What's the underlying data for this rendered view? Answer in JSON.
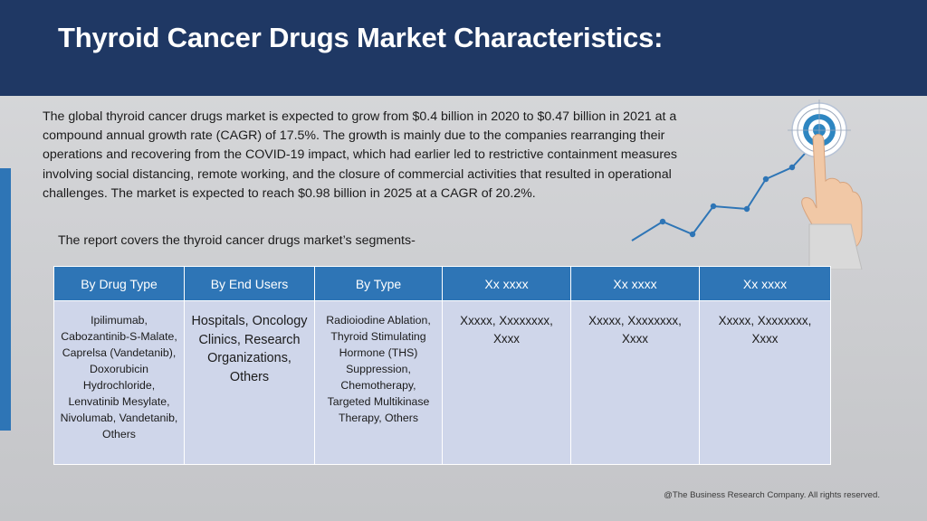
{
  "header": {
    "title": "Thyroid Cancer Drugs Market Characteristics:"
  },
  "intro_text": "The global thyroid cancer drugs market is expected to grow from $0.4 billion in 2020 to $0.47 billion in 2021 at a compound annual growth rate (CAGR) of 17.5%. The growth is mainly due to the companies rearranging their operations and recovering from the COVID-19 impact, which had earlier led to restrictive containment measures involving social distancing, remote working, and the closure of commercial activities that resulted in operational challenges. The market is expected to reach $0.98 billion in 2025 at a CAGR of 20.2%.",
  "segments_intro": "The report covers the thyroid cancer drugs market’s segments-",
  "segments_table": {
    "headers": [
      "By Drug Type",
      "By End Users",
      "By Type",
      "Xx xxxx",
      "Xx xxxx",
      "Xx xxxx"
    ],
    "cells": [
      "Ipilimumab, Cabozantinib-S-Malate, Caprelsa (Vandetanib), Doxorubicin Hydrochloride, Lenvatinib Mesylate, Nivolumab, Vandetanib, Others",
      "Hospitals, Oncology Clinics, Research Organizations, Others",
      "Radioiodine Ablation, Thyroid Stimulating Hormone (THS) Suppression, Chemotherapy, Targeted Multikinase Therapy, Others",
      "Xxxxx, Xxxxxxxx, Xxxx",
      "Xxxxx, Xxxxxxxx, Xxxx",
      "Xxxxx, Xxxxxxxx, Xxxx"
    ]
  },
  "colors": {
    "header_bg": "#1f3864",
    "table_header_bg": "#2e75b6",
    "table_cell_bg": "#cfd6ea",
    "accent": "#2e75b6"
  },
  "graphic": {
    "icon": "target-growth-hand-icon"
  },
  "footer": {
    "copyright": "@The Business Research Company. All rights reserved."
  }
}
